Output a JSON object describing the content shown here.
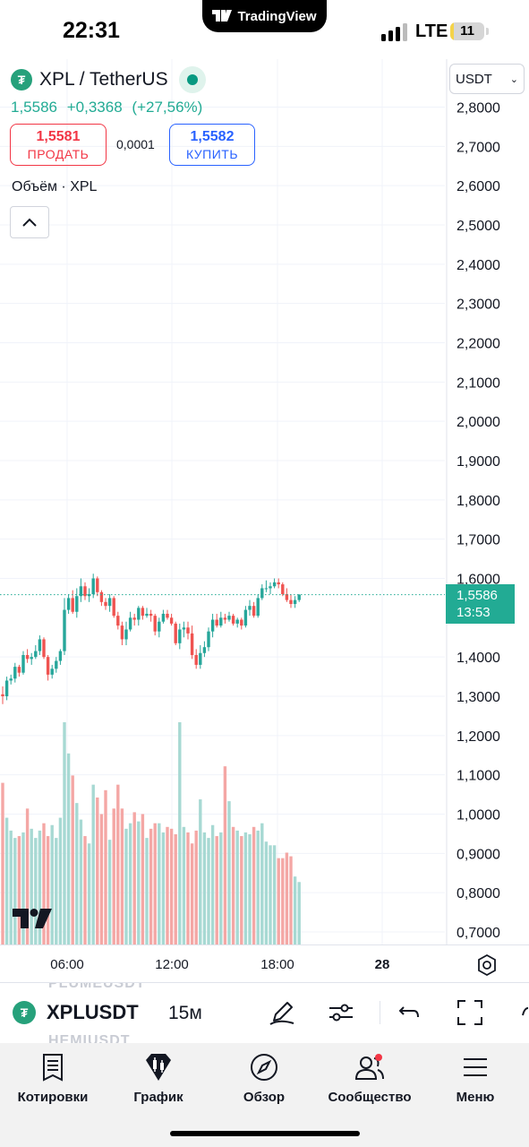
{
  "status_bar": {
    "time": "22:31",
    "app_pill": "TradingView",
    "network": "LTE",
    "battery": "11",
    "battery_level": 0.11
  },
  "symbol": {
    "title": "XPL / TetherUS",
    "last_price": "1,5586",
    "change": "+0,3368",
    "change_percent": "(+27,56%)"
  },
  "trade": {
    "sell_price": "1,5581",
    "sell_label": "ПРОДАТЬ",
    "spread": "0,0001",
    "buy_price": "1,5582",
    "buy_label": "КУПИТЬ"
  },
  "volume_legend": "Объём · XPL",
  "currency_selector": "USDT",
  "price_axis": {
    "ticks": [
      "2,8000",
      "2,7000",
      "2,6000",
      "2,5000",
      "2,4000",
      "2,3000",
      "2,2000",
      "2,1000",
      "2,0000",
      "1,9000",
      "1,8000",
      "1,7000",
      "1,6000",
      "1,4000",
      "1,3000",
      "1,2000",
      "1,1000",
      "1,0000",
      "0,9000",
      "0,8000",
      "0,7000"
    ],
    "current_price": "1,5586",
    "countdown": "13:53"
  },
  "time_axis": {
    "labels": [
      "06:00",
      "12:00",
      "18:00",
      "28"
    ]
  },
  "colors": {
    "up": "#26a69a",
    "down": "#ef5350",
    "accent": "#22ab94",
    "sell": "#f23645",
    "buy": "#2962ff"
  },
  "chart_data": {
    "type": "candlestick",
    "x": [
      "01:15",
      "01:30",
      "01:45",
      "02:00",
      "02:15",
      "02:30",
      "02:45",
      "03:00",
      "03:15",
      "03:30",
      "03:45",
      "04:00",
      "04:15",
      "04:30",
      "04:45",
      "05:00",
      "05:15",
      "05:30",
      "05:45",
      "06:00",
      "06:15",
      "06:30",
      "06:45",
      "07:00",
      "07:15",
      "07:30",
      "07:45",
      "08:00",
      "08:15",
      "08:30",
      "08:45",
      "09:00",
      "09:15",
      "09:30",
      "09:45",
      "10:00",
      "10:15",
      "10:30",
      "10:45",
      "11:00",
      "11:15",
      "11:30",
      "11:45",
      "12:00",
      "12:15",
      "12:30",
      "12:45",
      "13:00",
      "13:15",
      "13:30",
      "13:45",
      "14:00",
      "14:15",
      "14:30",
      "14:45",
      "15:00",
      "15:15",
      "15:30",
      "15:45",
      "16:00",
      "16:15",
      "16:30",
      "16:45",
      "17:00",
      "17:15",
      "17:30",
      "17:45",
      "18:00",
      "18:15",
      "18:30",
      "18:45",
      "19:00",
      "19:15"
    ],
    "open": [
      1.305,
      1.3,
      1.34,
      1.345,
      1.375,
      1.36,
      1.405,
      1.395,
      1.4,
      1.415,
      1.445,
      1.4,
      1.355,
      1.37,
      1.39,
      1.415,
      1.52,
      1.55,
      1.515,
      1.555,
      1.58,
      1.555,
      1.56,
      1.6,
      1.565,
      1.54,
      1.53,
      1.55,
      1.505,
      1.48,
      1.445,
      1.47,
      1.5,
      1.495,
      1.525,
      1.505,
      1.51,
      1.505,
      1.465,
      1.49,
      1.51,
      1.5,
      1.485,
      1.435,
      1.47,
      1.475,
      1.46,
      1.405,
      1.38,
      1.41,
      1.425,
      1.465,
      1.495,
      1.48,
      1.5,
      1.495,
      1.505,
      1.485,
      1.495,
      1.48,
      1.52,
      1.53,
      1.505,
      1.55,
      1.575,
      1.575,
      1.58,
      1.59,
      1.585,
      1.56,
      1.545,
      1.535,
      1.545
    ],
    "high": [
      1.325,
      1.35,
      1.355,
      1.385,
      1.38,
      1.415,
      1.42,
      1.41,
      1.43,
      1.455,
      1.45,
      1.405,
      1.38,
      1.4,
      1.42,
      1.55,
      1.56,
      1.57,
      1.575,
      1.6,
      1.59,
      1.575,
      1.612,
      1.605,
      1.57,
      1.55,
      1.56,
      1.555,
      1.515,
      1.49,
      1.49,
      1.515,
      1.51,
      1.53,
      1.53,
      1.525,
      1.52,
      1.51,
      1.5,
      1.52,
      1.52,
      1.51,
      1.49,
      1.485,
      1.49,
      1.49,
      1.48,
      1.42,
      1.43,
      1.44,
      1.475,
      1.51,
      1.51,
      1.515,
      1.51,
      1.515,
      1.51,
      1.5,
      1.5,
      1.53,
      1.545,
      1.54,
      1.56,
      1.585,
      1.595,
      1.59,
      1.6,
      1.6,
      1.59,
      1.575,
      1.56,
      1.555,
      1.56
    ],
    "low": [
      1.28,
      1.29,
      1.33,
      1.335,
      1.35,
      1.355,
      1.385,
      1.38,
      1.395,
      1.405,
      1.395,
      1.34,
      1.345,
      1.36,
      1.38,
      1.405,
      1.51,
      1.51,
      1.5,
      1.54,
      1.545,
      1.54,
      1.55,
      1.555,
      1.53,
      1.52,
      1.515,
      1.5,
      1.47,
      1.43,
      1.43,
      1.465,
      1.48,
      1.48,
      1.495,
      1.5,
      1.49,
      1.455,
      1.45,
      1.485,
      1.495,
      1.48,
      1.43,
      1.42,
      1.45,
      1.445,
      1.395,
      1.37,
      1.37,
      1.4,
      1.415,
      1.45,
      1.475,
      1.475,
      1.485,
      1.49,
      1.48,
      1.475,
      1.47,
      1.475,
      1.505,
      1.5,
      1.5,
      1.545,
      1.565,
      1.56,
      1.575,
      1.575,
      1.555,
      1.54,
      1.525,
      1.525,
      1.54
    ],
    "close": [
      1.3,
      1.34,
      1.345,
      1.375,
      1.36,
      1.405,
      1.395,
      1.4,
      1.415,
      1.445,
      1.4,
      1.355,
      1.37,
      1.39,
      1.415,
      1.52,
      1.55,
      1.515,
      1.555,
      1.58,
      1.555,
      1.56,
      1.6,
      1.565,
      1.54,
      1.53,
      1.55,
      1.505,
      1.48,
      1.445,
      1.47,
      1.5,
      1.495,
      1.525,
      1.505,
      1.51,
      1.505,
      1.465,
      1.49,
      1.51,
      1.5,
      1.485,
      1.435,
      1.47,
      1.475,
      1.46,
      1.405,
      1.38,
      1.41,
      1.425,
      1.465,
      1.495,
      1.48,
      1.5,
      1.495,
      1.505,
      1.485,
      1.495,
      1.48,
      1.52,
      1.53,
      1.505,
      1.55,
      1.575,
      1.575,
      1.58,
      1.59,
      1.585,
      1.56,
      1.545,
      1.535,
      1.545,
      1.5586
    ],
    "volume_series": {
      "name": "Объём · XPL",
      "values": [
        0.88,
        0.69,
        0.62,
        0.58,
        0.59,
        0.61,
        0.74,
        0.63,
        0.58,
        0.62,
        0.66,
        0.59,
        0.65,
        0.58,
        0.69,
        1.21,
        1.04,
        0.92,
        0.77,
        0.68,
        0.59,
        0.55,
        0.87,
        0.8,
        0.71,
        0.84,
        0.57,
        0.74,
        0.87,
        0.74,
        0.63,
        0.66,
        0.72,
        0.67,
        0.71,
        0.58,
        0.63,
        0.66,
        0.66,
        0.61,
        0.64,
        0.63,
        0.6,
        1.21,
        0.64,
        0.61,
        0.55,
        0.62,
        0.79,
        0.61,
        0.58,
        0.65,
        0.59,
        0.61,
        0.97,
        0.78,
        0.64,
        0.62,
        0.59,
        0.61,
        0.6,
        0.64,
        0.62,
        0.66,
        0.56,
        0.54,
        0.54,
        0.47,
        0.47,
        0.5,
        0.48,
        0.37,
        0.34
      ]
    },
    "ylim": [
      0.68,
      2.84
    ],
    "grid": true,
    "legend": "top-left"
  }
}
